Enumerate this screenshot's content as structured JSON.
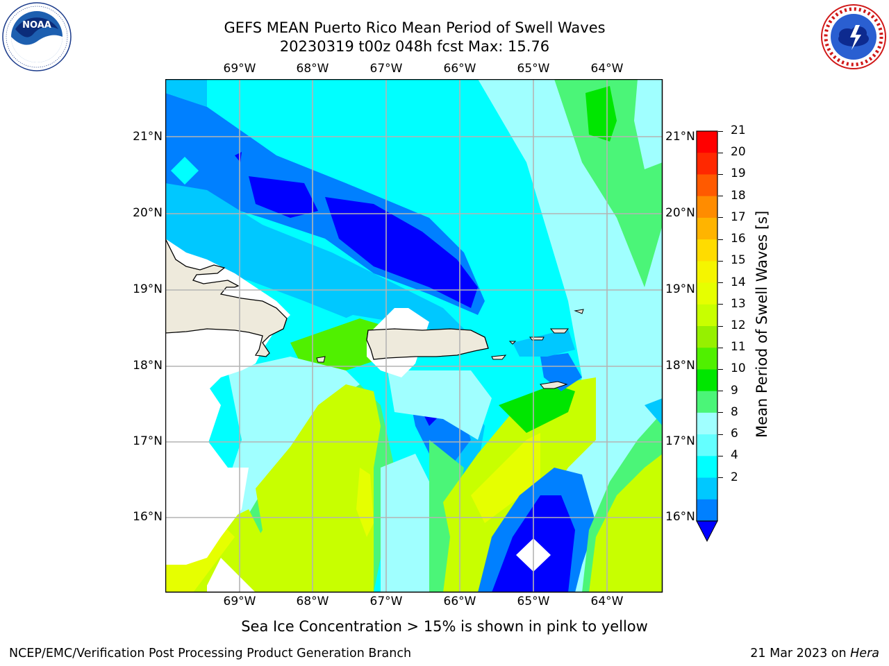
{
  "header": {
    "title_line1": "GEFS MEAN Puerto Rico Mean Period of Swell Waves",
    "title_line2": "20230319 t00z 048h fcst   Max: 15.76"
  },
  "logos": {
    "left": {
      "name": "noaa-logo",
      "text": "NOAA",
      "ring_text": "NATIONAL OCEANIC AND ATMOSPHERIC ADMINISTRATION · U.S. DEPARTMENT OF COMMERCE"
    },
    "right": {
      "name": "nws-logo",
      "ring_text": "NATIONAL WEATHER SERVICE"
    }
  },
  "map": {
    "lon_labels": [
      "69°W",
      "68°W",
      "67°W",
      "66°W",
      "65°W",
      "64°W"
    ],
    "lat_labels": [
      "21°N",
      "20°N",
      "19°N",
      "18°N",
      "17°N",
      "16°N"
    ],
    "land_color": "#eeeadc",
    "gridline_color": "#b4b4b4"
  },
  "colorbar": {
    "label": "Mean Period of Swell Waves [s]",
    "ticks": [
      "21",
      "20",
      "19",
      "18",
      "17",
      "16",
      "15",
      "14",
      "13",
      "12",
      "11",
      "10",
      "9",
      "8",
      "6",
      "4",
      "2"
    ],
    "colors": [
      "#ff0000",
      "#ff2800",
      "#ff5a00",
      "#ff8c00",
      "#ffb400",
      "#ffdc00",
      "#f5f500",
      "#e6ff00",
      "#c8ff00",
      "#96f000",
      "#50f000",
      "#00e600",
      "#4bf578",
      "#a0ffff",
      "#64ffff",
      "#00ffff",
      "#00c8ff",
      "#0080ff"
    ],
    "under_color": "#0000ff"
  },
  "note": "Sea Ice Concentration > 15% is shown in pink to yellow",
  "footer": {
    "left": "NCEP/EMC/Verification Post Processing Product Generation Branch",
    "right_prefix": "21 Mar 2023 on ",
    "right_machine": "Hera"
  }
}
